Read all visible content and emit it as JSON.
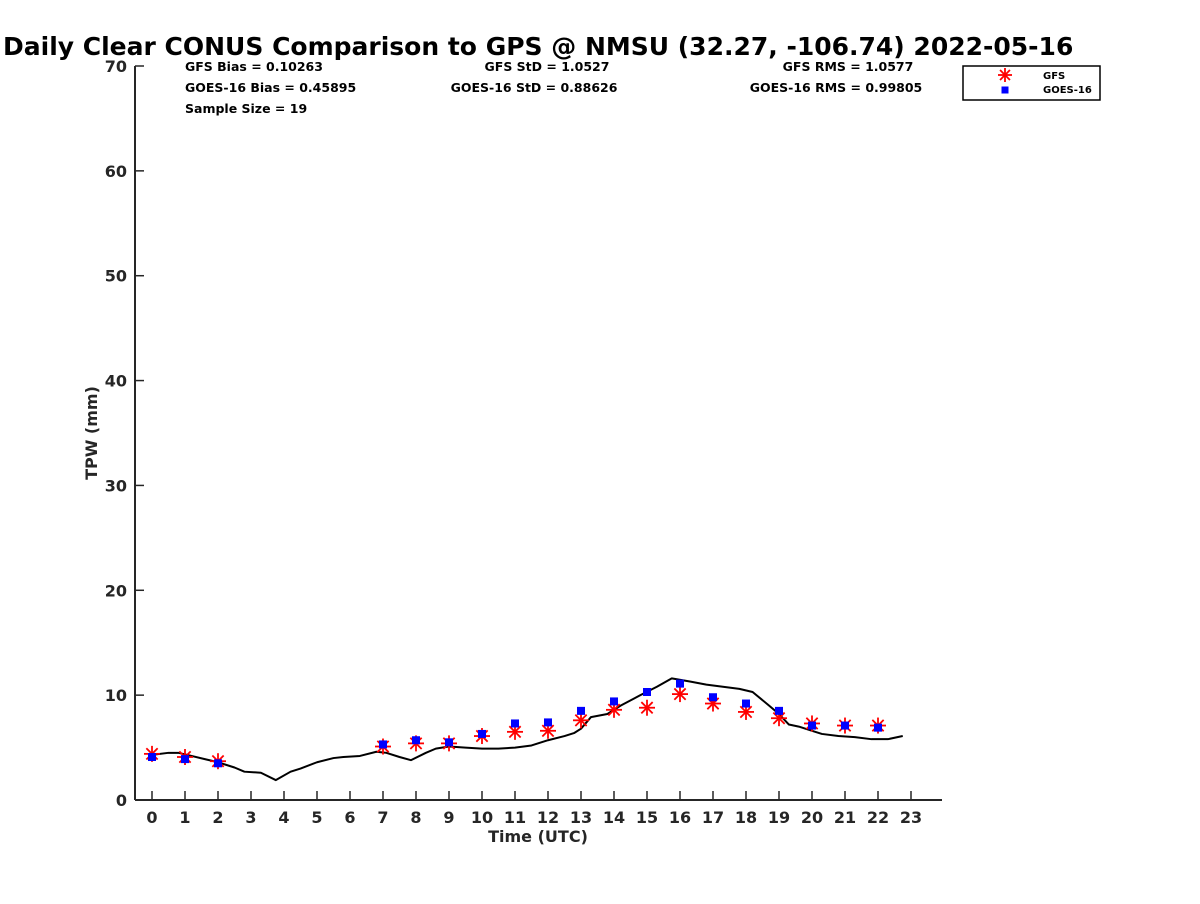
{
  "colors": {
    "gps_line": "#000000",
    "gfs_marker": "#ff0000",
    "goes_marker": "#0000ff",
    "axis": "#262626"
  },
  "chart_data": {
    "type": "scatter",
    "title": "Daily Clear CONUS Comparison to GPS @ NMSU (32.27, -106.74) 2022-05-16",
    "xlabel": "Time (UTC)",
    "ylabel": "TPW (mm)",
    "xlim": [
      -0.5,
      23.7
    ],
    "ylim": [
      0,
      70
    ],
    "xticks": [
      0,
      1,
      2,
      3,
      4,
      5,
      6,
      7,
      8,
      9,
      10,
      11,
      12,
      13,
      14,
      15,
      16,
      17,
      18,
      19,
      20,
      21,
      22,
      23
    ],
    "yticks": [
      0,
      10,
      20,
      30,
      40,
      50,
      60,
      70
    ],
    "grid": false,
    "legend": {
      "placement": "top-right"
    },
    "stats": {
      "gfs_bias": "GFS Bias = 0.10263",
      "goes_bias": "GOES-16 Bias = 0.45895",
      "sample_size": "Sample Size = 19",
      "gfs_std": "GFS StD = 1.0527",
      "goes_std": "GOES-16 StD = 0.88626",
      "gfs_rms": "GFS RMS = 1.0577",
      "goes_rms": "GOES-16 RMS = 0.99805"
    },
    "series": [
      {
        "style": "line",
        "x": [
          0,
          0.5,
          0.8,
          1.2,
          1.6,
          2.0,
          2.5,
          2.8,
          3.3,
          3.75,
          4.2,
          4.5,
          5.0,
          5.5,
          5.8,
          6.3,
          6.8,
          7.1,
          7.5,
          7.85,
          8.3,
          8.6,
          9.0,
          9.5,
          10.0,
          10.5,
          11.0,
          11.5,
          12.0,
          12.5,
          12.8,
          13.0,
          13.3,
          13.8,
          14.2,
          14.8,
          15.3,
          15.75,
          16.3,
          16.8,
          17.3,
          17.8,
          18.2,
          18.7,
          19.0,
          19.3,
          19.6,
          20.0,
          20.3,
          20.8,
          21.3,
          21.8,
          22.3,
          22.75
        ],
        "y": [
          4.3,
          4.5,
          4.5,
          4.2,
          3.9,
          3.6,
          3.1,
          2.7,
          2.6,
          1.9,
          2.7,
          3.0,
          3.6,
          4.0,
          4.1,
          4.2,
          4.6,
          4.5,
          4.1,
          3.8,
          4.5,
          4.9,
          5.1,
          5.0,
          4.9,
          4.9,
          5.0,
          5.2,
          5.7,
          6.1,
          6.4,
          6.8,
          7.9,
          8.2,
          9.0,
          10.0,
          10.8,
          11.6,
          11.3,
          11.0,
          10.8,
          10.6,
          10.3,
          9.0,
          8.2,
          7.2,
          7.0,
          6.6,
          6.3,
          6.1,
          6.0,
          5.8,
          5.8,
          6.1
        ]
      },
      {
        "name": "GFS",
        "style": "asterisk",
        "x": [
          0,
          1,
          2,
          7,
          8,
          9,
          10,
          11,
          12,
          13,
          14,
          15,
          16,
          17,
          18,
          19,
          20,
          21,
          22
        ],
        "y": [
          4.4,
          4.1,
          3.7,
          5.1,
          5.4,
          5.4,
          6.1,
          6.5,
          6.6,
          7.6,
          8.6,
          8.8,
          10.1,
          9.2,
          8.4,
          7.8,
          7.3,
          7.1,
          7.1
        ]
      },
      {
        "name": "GOES-16",
        "style": "square",
        "x": [
          0,
          1,
          2,
          7,
          8,
          9,
          10,
          11,
          12,
          13,
          14,
          15,
          16,
          17,
          18,
          19,
          20,
          21,
          22
        ],
        "y": [
          4.1,
          3.9,
          3.5,
          5.3,
          5.7,
          5.5,
          6.3,
          7.3,
          7.4,
          8.5,
          9.4,
          10.3,
          11.1,
          9.8,
          9.2,
          8.5,
          7.1,
          7.1,
          6.9
        ]
      }
    ]
  }
}
